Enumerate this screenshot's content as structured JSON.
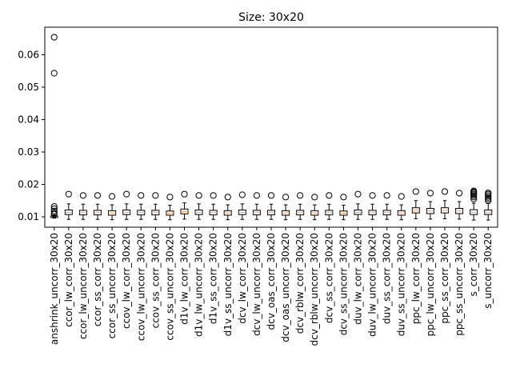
{
  "chart_data": {
    "type": "box",
    "title": "Size: 30x20",
    "xlabel": "",
    "ylabel": "",
    "ylim": [
      0.0068,
      0.0685
    ],
    "yticks": [
      0.01,
      0.02,
      0.03,
      0.04,
      0.05,
      0.06
    ],
    "yticklabels": [
      "0.01",
      "0.02",
      "0.03",
      "0.04",
      "0.05",
      "0.06"
    ],
    "grid": false,
    "box_color": "#000000",
    "median_color": "#f5a05a",
    "series": [
      {
        "name": "anshrink_uncorr_30x20",
        "whislo": 0.0096,
        "q1": 0.0098,
        "med": 0.01,
        "q3": 0.0102,
        "whishi": 0.0106,
        "fliers": [
          0.0654,
          0.0543,
          0.0132,
          0.0125,
          0.0118,
          0.0112,
          0.0108
        ]
      },
      {
        "name": "ccor_lw_corr_30x20",
        "whislo": 0.0092,
        "q1": 0.0107,
        "med": 0.0114,
        "q3": 0.0121,
        "whishi": 0.014,
        "fliers": [
          0.017
        ]
      },
      {
        "name": "ccor_lw_uncorr_30x20",
        "whislo": 0.0092,
        "q1": 0.0106,
        "med": 0.0113,
        "q3": 0.012,
        "whishi": 0.0139,
        "fliers": [
          0.0166
        ]
      },
      {
        "name": "ccor_ss_corr_30x20",
        "whislo": 0.0092,
        "q1": 0.0106,
        "med": 0.0113,
        "q3": 0.012,
        "whishi": 0.0139,
        "fliers": [
          0.0166
        ]
      },
      {
        "name": "ccor_ss_uncorr_30x20",
        "whislo": 0.0091,
        "q1": 0.0105,
        "med": 0.0112,
        "q3": 0.0119,
        "whishi": 0.0137,
        "fliers": [
          0.0163
        ]
      },
      {
        "name": "ccov_lw_corr_30x20",
        "whislo": 0.0092,
        "q1": 0.0107,
        "med": 0.0114,
        "q3": 0.0121,
        "whishi": 0.014,
        "fliers": [
          0.017
        ]
      },
      {
        "name": "ccov_lw_uncorr_30x20",
        "whislo": 0.0092,
        "q1": 0.0106,
        "med": 0.0113,
        "q3": 0.012,
        "whishi": 0.0139,
        "fliers": [
          0.0166
        ]
      },
      {
        "name": "ccov_ss_corr_30x20",
        "whislo": 0.0092,
        "q1": 0.0106,
        "med": 0.0113,
        "q3": 0.012,
        "whishi": 0.0139,
        "fliers": [
          0.0166
        ]
      },
      {
        "name": "ccov_ss_uncorr_30x20",
        "whislo": 0.0091,
        "q1": 0.0105,
        "med": 0.0111,
        "q3": 0.0118,
        "whishi": 0.0136,
        "fliers": [
          0.0161
        ]
      },
      {
        "name": "d1v_lw_corr_30x20",
        "whislo": 0.0093,
        "q1": 0.0109,
        "med": 0.0116,
        "q3": 0.0124,
        "whishi": 0.0143,
        "fliers": [
          0.017
        ]
      },
      {
        "name": "d1v_lw_uncorr_30x20",
        "whislo": 0.0092,
        "q1": 0.0107,
        "med": 0.0114,
        "q3": 0.0121,
        "whishi": 0.014,
        "fliers": [
          0.0166
        ]
      },
      {
        "name": "d1v_ss_corr_30x20",
        "whislo": 0.0092,
        "q1": 0.0106,
        "med": 0.0113,
        "q3": 0.012,
        "whishi": 0.0139,
        "fliers": [
          0.0166
        ]
      },
      {
        "name": "d1v_ss_uncorr_30x20",
        "whislo": 0.0091,
        "q1": 0.0105,
        "med": 0.0112,
        "q3": 0.0119,
        "whishi": 0.0137,
        "fliers": [
          0.0161
        ]
      },
      {
        "name": "dcv_lw_corr_30x20",
        "whislo": 0.0092,
        "q1": 0.0107,
        "med": 0.0114,
        "q3": 0.0121,
        "whishi": 0.014,
        "fliers": [
          0.0168
        ]
      },
      {
        "name": "dcv_lw_uncorr_30x20",
        "whislo": 0.0092,
        "q1": 0.0106,
        "med": 0.0113,
        "q3": 0.012,
        "whishi": 0.0139,
        "fliers": [
          0.0166
        ]
      },
      {
        "name": "dcv_oas_corr_30x20",
        "whislo": 0.0092,
        "q1": 0.0106,
        "med": 0.0113,
        "q3": 0.012,
        "whishi": 0.0139,
        "fliers": [
          0.0166
        ]
      },
      {
        "name": "dcv_oas_uncorr_30x20",
        "whislo": 0.0091,
        "q1": 0.0105,
        "med": 0.0112,
        "q3": 0.0119,
        "whishi": 0.0137,
        "fliers": [
          0.0161
        ]
      },
      {
        "name": "dcv_rblw_corr_30x20",
        "whislo": 0.0092,
        "q1": 0.0106,
        "med": 0.0113,
        "q3": 0.012,
        "whishi": 0.0139,
        "fliers": [
          0.0166
        ]
      },
      {
        "name": "dcv_rblw_uncorr_30x20",
        "whislo": 0.0091,
        "q1": 0.0105,
        "med": 0.0112,
        "q3": 0.0119,
        "whishi": 0.0137,
        "fliers": [
          0.0161
        ]
      },
      {
        "name": "dcv_ss_corr_30x20",
        "whislo": 0.0092,
        "q1": 0.0106,
        "med": 0.0113,
        "q3": 0.012,
        "whishi": 0.0139,
        "fliers": [
          0.0166
        ]
      },
      {
        "name": "dcv_ss_uncorr_30x20",
        "whislo": 0.0091,
        "q1": 0.0105,
        "med": 0.0111,
        "q3": 0.0118,
        "whishi": 0.0136,
        "fliers": [
          0.0161
        ]
      },
      {
        "name": "duv_lw_corr_30x20",
        "whislo": 0.0092,
        "q1": 0.0107,
        "med": 0.0114,
        "q3": 0.0121,
        "whishi": 0.014,
        "fliers": [
          0.017
        ]
      },
      {
        "name": "duv_lw_uncorr_30x20",
        "whislo": 0.0092,
        "q1": 0.0106,
        "med": 0.0113,
        "q3": 0.012,
        "whishi": 0.0139,
        "fliers": [
          0.0166
        ]
      },
      {
        "name": "duv_ss_corr_30x20",
        "whislo": 0.0092,
        "q1": 0.0106,
        "med": 0.0113,
        "q3": 0.012,
        "whishi": 0.0139,
        "fliers": [
          0.0166
        ]
      },
      {
        "name": "duv_ss_uncorr_30x20",
        "whislo": 0.0091,
        "q1": 0.0105,
        "med": 0.0112,
        "q3": 0.0119,
        "whishi": 0.0137,
        "fliers": [
          0.0163
        ]
      },
      {
        "name": "ppc_lw_corr_30x20",
        "whislo": 0.0094,
        "q1": 0.0112,
        "med": 0.012,
        "q3": 0.0128,
        "whishi": 0.015,
        "fliers": [
          0.0178
        ]
      },
      {
        "name": "ppc_lw_uncorr_30x20",
        "whislo": 0.0093,
        "q1": 0.011,
        "med": 0.0118,
        "q3": 0.0126,
        "whishi": 0.0147,
        "fliers": [
          0.0173
        ]
      },
      {
        "name": "ppc_ss_corr_30x20",
        "whislo": 0.0094,
        "q1": 0.0112,
        "med": 0.012,
        "q3": 0.0128,
        "whishi": 0.015,
        "fliers": [
          0.0178
        ]
      },
      {
        "name": "ppc_ss_uncorr_30x20",
        "whislo": 0.0093,
        "q1": 0.011,
        "med": 0.0118,
        "q3": 0.0126,
        "whishi": 0.0147,
        "fliers": [
          0.0173
        ]
      },
      {
        "name": "s_corr_30x20",
        "whislo": 0.009,
        "q1": 0.0107,
        "med": 0.0114,
        "q3": 0.0122,
        "whishi": 0.0142,
        "fliers": [
          0.018,
          0.0177,
          0.0174,
          0.017,
          0.0166,
          0.0161,
          0.0155
        ]
      },
      {
        "name": "s_uncorr_30x20",
        "whislo": 0.009,
        "q1": 0.0107,
        "med": 0.0113,
        "q3": 0.0121,
        "whishi": 0.0141,
        "fliers": [
          0.0174,
          0.017,
          0.0165,
          0.016,
          0.0155,
          0.015
        ]
      }
    ]
  }
}
